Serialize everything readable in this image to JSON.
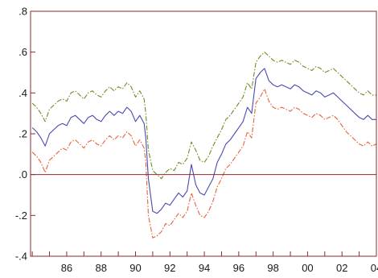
{
  "chart_data": {
    "type": "line",
    "title": "",
    "xlabel": "",
    "ylabel": "",
    "xlim": [
      1984.9,
      2005.0
    ],
    "ylim": [
      -0.4,
      0.8
    ],
    "x_ticks": [
      {
        "value": 1986,
        "label": "86"
      },
      {
        "value": 1988,
        "label": "88"
      },
      {
        "value": 1990,
        "label": "90"
      },
      {
        "value": 1992,
        "label": "92"
      },
      {
        "value": 1994,
        "label": "94"
      },
      {
        "value": 1996,
        "label": "96"
      },
      {
        "value": 1998,
        "label": "98"
      },
      {
        "value": 2000,
        "label": "00"
      },
      {
        "value": 2002,
        "label": "02"
      },
      {
        "value": 2004,
        "label": "04"
      }
    ],
    "y_ticks": [
      {
        "value": 0.8,
        "label": ".8"
      },
      {
        "value": 0.6,
        "label": ".6"
      },
      {
        "value": 0.4,
        "label": ".4"
      },
      {
        "value": 0.2,
        "label": ".2"
      },
      {
        "value": 0.0,
        "label": ".0"
      },
      {
        "value": -0.2,
        "label": "-.2"
      },
      {
        "value": -0.4,
        "label": "-.4"
      }
    ],
    "zero_line": {
      "value": 0.0,
      "color": "#8b2b2b"
    },
    "axis_color": "#8b2b2b",
    "series": [
      {
        "color": "#6b8e23",
        "style": "dash-dot",
        "x": [
          1985.0,
          1985.25,
          1985.5,
          1985.75,
          1986.0,
          1986.25,
          1986.5,
          1986.75,
          1987.0,
          1987.25,
          1987.5,
          1987.75,
          1988.0,
          1988.25,
          1988.5,
          1988.75,
          1989.0,
          1989.25,
          1989.5,
          1989.75,
          1990.0,
          1990.25,
          1990.5,
          1990.75,
          1991.0,
          1991.25,
          1991.5,
          1991.6,
          1991.75,
          1992.0,
          1992.25,
          1992.5,
          1992.75,
          1993.0,
          1993.25,
          1993.5,
          1993.75,
          1994.0,
          1994.25,
          1994.5,
          1994.75,
          1995.0,
          1995.25,
          1995.5,
          1995.75,
          1996.0,
          1996.25,
          1996.5,
          1996.75,
          1997.0,
          1997.25,
          1997.5,
          1997.75,
          1998.0,
          1998.25,
          1998.5,
          1998.75,
          1999.0,
          1999.25,
          1999.5,
          1999.75,
          2000.0,
          2000.25,
          2000.5,
          2000.75,
          2001.0,
          2001.25,
          2001.5,
          2001.75,
          2002.0,
          2002.25,
          2002.5,
          2002.75,
          2003.0,
          2003.25,
          2003.5,
          2003.75,
          2004.0,
          2004.25,
          2004.5,
          2004.75,
          2005.0
        ],
        "y": [
          0.35,
          0.33,
          0.3,
          0.26,
          0.32,
          0.34,
          0.36,
          0.37,
          0.36,
          0.4,
          0.41,
          0.39,
          0.37,
          0.4,
          0.41,
          0.39,
          0.38,
          0.41,
          0.43,
          0.41,
          0.43,
          0.42,
          0.45,
          0.43,
          0.38,
          0.41,
          0.37,
          0.3,
          0.12,
          0.02,
          0.0,
          -0.02,
          0.01,
          0.03,
          0.02,
          0.06,
          0.05,
          0.08,
          0.16,
          0.12,
          0.07,
          0.06,
          0.09,
          0.14,
          0.18,
          0.22,
          0.27,
          0.29,
          0.32,
          0.35,
          0.38,
          0.45,
          0.42,
          0.55,
          0.58,
          0.6,
          0.58,
          0.56,
          0.55,
          0.56,
          0.55,
          0.54,
          0.56,
          0.55,
          0.53,
          0.52,
          0.51,
          0.53,
          0.52,
          0.5,
          0.51,
          0.52,
          0.5,
          0.48,
          0.46,
          0.44,
          0.42,
          0.4,
          0.39,
          0.41,
          0.39,
          0.39
        ]
      },
      {
        "color": "#4a4ab0",
        "style": "solid",
        "x": [
          1985.0,
          1985.25,
          1985.5,
          1985.75,
          1986.0,
          1986.25,
          1986.5,
          1986.75,
          1987.0,
          1987.25,
          1987.5,
          1987.75,
          1988.0,
          1988.25,
          1988.5,
          1988.75,
          1989.0,
          1989.25,
          1989.5,
          1989.75,
          1990.0,
          1990.25,
          1990.5,
          1990.75,
          1991.0,
          1991.25,
          1991.5,
          1991.6,
          1991.75,
          1992.0,
          1992.25,
          1992.5,
          1992.75,
          1993.0,
          1993.25,
          1993.5,
          1993.75,
          1994.0,
          1994.25,
          1994.5,
          1994.75,
          1995.0,
          1995.25,
          1995.5,
          1995.75,
          1996.0,
          1996.25,
          1996.5,
          1996.75,
          1997.0,
          1997.25,
          1997.5,
          1997.75,
          1998.0,
          1998.25,
          1998.5,
          1998.75,
          1999.0,
          1999.25,
          1999.5,
          1999.75,
          2000.0,
          2000.25,
          2000.5,
          2000.75,
          2001.0,
          2001.25,
          2001.5,
          2001.75,
          2002.0,
          2002.25,
          2002.5,
          2002.75,
          2003.0,
          2003.25,
          2003.5,
          2003.75,
          2004.0,
          2004.25,
          2004.5,
          2004.75,
          2005.0
        ],
        "y": [
          0.23,
          0.21,
          0.18,
          0.14,
          0.2,
          0.22,
          0.24,
          0.25,
          0.24,
          0.28,
          0.29,
          0.27,
          0.25,
          0.28,
          0.29,
          0.27,
          0.26,
          0.29,
          0.31,
          0.29,
          0.31,
          0.3,
          0.33,
          0.31,
          0.26,
          0.29,
          0.25,
          0.18,
          -0.02,
          -0.18,
          -0.19,
          -0.17,
          -0.14,
          -0.15,
          -0.12,
          -0.09,
          -0.11,
          -0.08,
          0.05,
          -0.05,
          -0.09,
          -0.1,
          -0.06,
          -0.02,
          0.06,
          0.1,
          0.15,
          0.17,
          0.2,
          0.23,
          0.26,
          0.33,
          0.3,
          0.47,
          0.5,
          0.52,
          0.46,
          0.44,
          0.43,
          0.44,
          0.43,
          0.42,
          0.44,
          0.43,
          0.41,
          0.4,
          0.39,
          0.41,
          0.4,
          0.38,
          0.39,
          0.4,
          0.38,
          0.36,
          0.34,
          0.32,
          0.3,
          0.28,
          0.27,
          0.29,
          0.27,
          0.27
        ]
      },
      {
        "color": "#e8613a",
        "style": "dash-dot",
        "x": [
          1985.0,
          1985.25,
          1985.5,
          1985.75,
          1986.0,
          1986.25,
          1986.5,
          1986.75,
          1987.0,
          1987.25,
          1987.5,
          1987.75,
          1988.0,
          1988.25,
          1988.5,
          1988.75,
          1989.0,
          1989.25,
          1989.5,
          1989.75,
          1990.0,
          1990.25,
          1990.5,
          1990.75,
          1991.0,
          1991.25,
          1991.5,
          1991.6,
          1991.75,
          1992.0,
          1992.25,
          1992.5,
          1992.75,
          1993.0,
          1993.25,
          1993.5,
          1993.75,
          1994.0,
          1994.25,
          1994.5,
          1994.75,
          1995.0,
          1995.25,
          1995.5,
          1995.75,
          1996.0,
          1996.25,
          1996.5,
          1996.75,
          1997.0,
          1997.25,
          1997.5,
          1997.75,
          1998.0,
          1998.25,
          1998.5,
          1998.75,
          1999.0,
          1999.25,
          1999.5,
          1999.75,
          2000.0,
          2000.25,
          2000.5,
          2000.75,
          2001.0,
          2001.25,
          2001.5,
          2001.75,
          2002.0,
          2002.25,
          2002.5,
          2002.75,
          2003.0,
          2003.25,
          2003.5,
          2003.75,
          2004.0,
          2004.25,
          2004.5,
          2004.75,
          2005.0
        ],
        "y": [
          0.11,
          0.09,
          0.06,
          0.01,
          0.07,
          0.09,
          0.11,
          0.13,
          0.12,
          0.16,
          0.17,
          0.15,
          0.13,
          0.16,
          0.17,
          0.15,
          0.14,
          0.17,
          0.19,
          0.17,
          0.19,
          0.18,
          0.21,
          0.19,
          0.14,
          0.17,
          0.13,
          0.06,
          -0.2,
          -0.31,
          -0.3,
          -0.28,
          -0.24,
          -0.25,
          -0.22,
          -0.19,
          -0.21,
          -0.18,
          -0.09,
          -0.15,
          -0.2,
          -0.21,
          -0.18,
          -0.13,
          -0.06,
          -0.02,
          0.03,
          0.05,
          0.08,
          0.11,
          0.14,
          0.21,
          0.18,
          0.35,
          0.38,
          0.42,
          0.36,
          0.33,
          0.32,
          0.33,
          0.32,
          0.31,
          0.33,
          0.32,
          0.3,
          0.29,
          0.28,
          0.3,
          0.29,
          0.27,
          0.28,
          0.29,
          0.27,
          0.24,
          0.21,
          0.19,
          0.17,
          0.15,
          0.14,
          0.16,
          0.14,
          0.15
        ]
      }
    ]
  }
}
